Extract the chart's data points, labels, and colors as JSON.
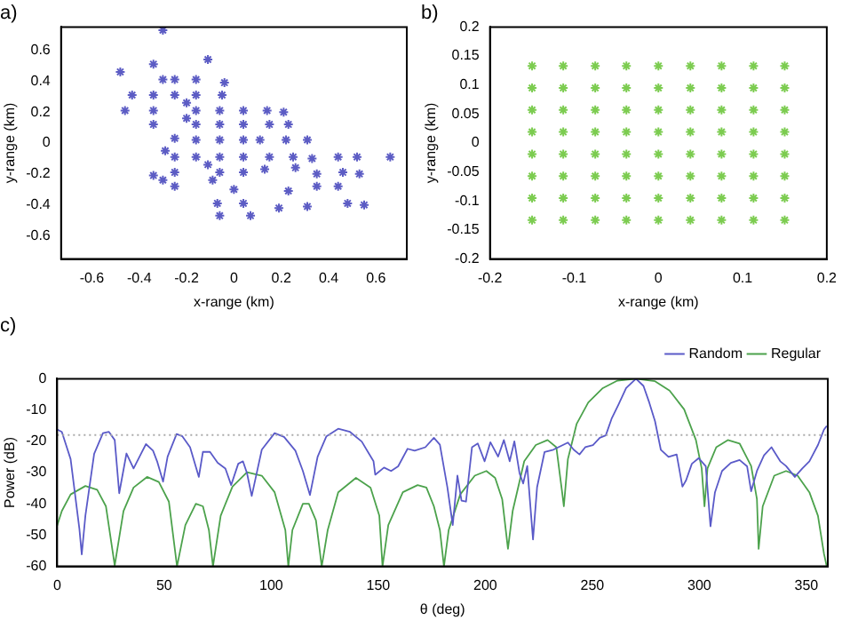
{
  "chart_data": [
    {
      "type": "scatter",
      "title": "a)",
      "xlabel": "x-range (km)",
      "ylabel": "y-range (km)",
      "marker": "cross",
      "color": "#5c5cc4",
      "xlim": [
        -0.73,
        0.73
      ],
      "ylim": [
        -0.75,
        0.75
      ],
      "xticks": [
        -0.6,
        -0.4,
        -0.2,
        0,
        0.2,
        0.4,
        0.6
      ],
      "yticks": [
        -0.6,
        -0.4,
        -0.2,
        0,
        0.2,
        0.4,
        0.6
      ],
      "x": [
        -0.3,
        -0.11,
        -0.48,
        -0.34,
        -0.3,
        -0.25,
        -0.16,
        -0.04,
        -0.43,
        -0.34,
        -0.25,
        -0.16,
        -0.05,
        -0.2,
        -0.46,
        -0.34,
        -0.16,
        -0.06,
        0.04,
        0.14,
        0.21,
        -0.2,
        -0.34,
        -0.16,
        -0.06,
        0.04,
        0.15,
        0.23,
        -0.25,
        -0.16,
        -0.06,
        0.04,
        0.11,
        0.22,
        0.31,
        -0.29,
        -0.25,
        -0.16,
        -0.06,
        0.04,
        0.15,
        0.25,
        0.33,
        0.44,
        0.52,
        0.66,
        -0.11,
        0.26,
        -0.25,
        -0.06,
        0.04,
        0.13,
        0.35,
        0.46,
        0.53,
        -0.34,
        -0.3,
        -0.09,
        -0.25,
        0,
        0.35,
        0.44,
        0.23,
        -0.07,
        0.04,
        0.48,
        0.55,
        0.31,
        0.19,
        -0.06,
        0.07
      ],
      "values": [
        0.73,
        0.54,
        0.46,
        0.51,
        0.41,
        0.41,
        0.41,
        0.39,
        0.31,
        0.31,
        0.31,
        0.31,
        0.31,
        0.26,
        0.21,
        0.21,
        0.21,
        0.21,
        0.21,
        0.21,
        0.2,
        0.16,
        0.12,
        0.12,
        0.12,
        0.12,
        0.12,
        0.12,
        0.03,
        0.02,
        0.02,
        0.02,
        0.02,
        0.02,
        0.02,
        -0.05,
        -0.09,
        -0.09,
        -0.09,
        -0.09,
        -0.09,
        -0.09,
        -0.1,
        -0.09,
        -0.09,
        -0.09,
        -0.14,
        -0.16,
        -0.19,
        -0.19,
        -0.19,
        -0.17,
        -0.2,
        -0.19,
        -0.2,
        -0.21,
        -0.24,
        -0.24,
        -0.28,
        -0.3,
        -0.28,
        -0.28,
        -0.31,
        -0.39,
        -0.39,
        -0.39,
        -0.4,
        -0.41,
        -0.42,
        -0.47,
        -0.47
      ]
    },
    {
      "type": "scatter",
      "title": "b)",
      "xlabel": "x-range (km)",
      "ylabel": "y-range (km)",
      "marker": "cross",
      "color": "#7ccc50",
      "xlim": [
        -0.2,
        0.2
      ],
      "ylim": [
        -0.2,
        0.2
      ],
      "xticks": [
        -0.2,
        -0.1,
        0,
        0.1,
        0.2
      ],
      "yticks": [
        -0.2,
        -0.15,
        -0.1,
        -0.05,
        0,
        0.05,
        0.1,
        0.15,
        0.2
      ],
      "x": [
        -0.15,
        -0.113,
        -0.075,
        -0.038,
        0,
        0.038,
        0.075,
        0.113,
        0.15,
        -0.15,
        -0.113,
        -0.075,
        -0.038,
        0,
        0.038,
        0.075,
        0.113,
        0.15,
        -0.15,
        -0.113,
        -0.075,
        -0.038,
        0,
        0.038,
        0.075,
        0.113,
        0.15,
        -0.15,
        -0.113,
        -0.075,
        -0.038,
        0,
        0.038,
        0.075,
        0.113,
        0.15,
        -0.15,
        -0.113,
        -0.075,
        -0.038,
        0,
        0.038,
        0.075,
        0.113,
        0.15,
        -0.15,
        -0.113,
        -0.075,
        -0.038,
        0,
        0.038,
        0.075,
        0.113,
        0.15,
        -0.15,
        -0.113,
        -0.075,
        -0.038,
        0,
        0.038,
        0.075,
        0.113,
        0.15,
        -0.15,
        -0.113,
        -0.075,
        -0.038,
        0,
        0.038,
        0.075,
        0.113,
        0.15
      ],
      "values": [
        0.133,
        0.133,
        0.133,
        0.133,
        0.133,
        0.133,
        0.133,
        0.133,
        0.133,
        0.095,
        0.095,
        0.095,
        0.095,
        0.095,
        0.095,
        0.095,
        0.095,
        0.095,
        0.057,
        0.057,
        0.057,
        0.057,
        0.057,
        0.057,
        0.057,
        0.057,
        0.057,
        0.019,
        0.019,
        0.019,
        0.019,
        0.019,
        0.019,
        0.019,
        0.019,
        0.019,
        -0.019,
        -0.019,
        -0.019,
        -0.019,
        -0.019,
        -0.019,
        -0.019,
        -0.019,
        -0.019,
        -0.057,
        -0.057,
        -0.057,
        -0.057,
        -0.057,
        -0.057,
        -0.057,
        -0.057,
        -0.057,
        -0.095,
        -0.095,
        -0.095,
        -0.095,
        -0.095,
        -0.095,
        -0.095,
        -0.095,
        -0.095,
        -0.133,
        -0.133,
        -0.133,
        -0.133,
        -0.133,
        -0.133,
        -0.133,
        -0.133,
        -0.133
      ]
    },
    {
      "type": "line",
      "title": "c)",
      "xlabel": "θ (deg)",
      "ylabel": "Power (dB)",
      "legend": "top right",
      "xlim": [
        0,
        360
      ],
      "ylim": [
        -60,
        0
      ],
      "xticks": [
        0,
        50,
        100,
        150,
        200,
        250,
        300,
        350
      ],
      "yticks": [
        -60,
        -50,
        -40,
        -30,
        -20,
        -10,
        0
      ],
      "ref_lines": [
        {
          "axis": "y",
          "value": -18,
          "color": "#aaaaaa",
          "line_style": "dotted"
        }
      ],
      "series": [
        {
          "name": "Random",
          "color": "#5a5ac8",
          "x": [
            0,
            2.2,
            6.3,
            10.4,
            11.5,
            13.2,
            17.3,
            21.4,
            24.2,
            26.9,
            29,
            32.4,
            35.7,
            38.5,
            41.5,
            44.8,
            46.7,
            49.5,
            51.6,
            55.8,
            58.5,
            62.1,
            66.2,
            68.1,
            71.4,
            75,
            78.6,
            81.3,
            84.6,
            86.8,
            88.7,
            90.9,
            95.6,
            101.6,
            106,
            111.3,
            114.8,
            118.1,
            121.7,
            125.8,
            131.3,
            136.8,
            142.3,
            147.8,
            148.6,
            152.7,
            156,
            159.3,
            163.7,
            167,
            172,
            176,
            178.8,
            182.3,
            184.8,
            187,
            188.9,
            191,
            193.8,
            196.5,
            199.7,
            202.4,
            206,
            208.7,
            211.4,
            213.6,
            216,
            217.7,
            219.6,
            222.3,
            224.2,
            227.7,
            231.8,
            235,
            238.6,
            241.3,
            244,
            246.7,
            250.3,
            253.5,
            256.3,
            259,
            262.2,
            265.8,
            270.4,
            273.9,
            276.6,
            279.3,
            282,
            285.6,
            289.4,
            292.1,
            293.8,
            296.5,
            299.7,
            303,
            305.2,
            307.3,
            310.6,
            314.7,
            318.8,
            322.3,
            324.2,
            326.9,
            330.2,
            333.7,
            337.8,
            340.5,
            344.6,
            348.1,
            351.4,
            355.4,
            358.2,
            359.5
          ],
          "values": [
            -16.2,
            -17,
            -25.7,
            -48,
            -56.2,
            -43.8,
            -24,
            -17.4,
            -17,
            -19.6,
            -36.6,
            -23.9,
            -28.7,
            -24.9,
            -20.9,
            -23,
            -26.4,
            -32.9,
            -24.9,
            -17.7,
            -18.4,
            -21.9,
            -31.4,
            -23.4,
            -23.4,
            -26.9,
            -28.7,
            -34,
            -27.2,
            -26.4,
            -30.2,
            -37.5,
            -22.7,
            -17.4,
            -18.6,
            -23,
            -29.5,
            -37.2,
            -24.9,
            -18.4,
            -16,
            -17,
            -20.1,
            -26.4,
            -30.7,
            -28.4,
            -29.5,
            -28,
            -22.4,
            -23,
            -21.9,
            -18.9,
            -21.1,
            -34.7,
            -46.8,
            -31,
            -39,
            -39.3,
            -21.9,
            -20.7,
            -26.4,
            -20.3,
            -24.9,
            -19.6,
            -26.4,
            -20,
            -30.2,
            -33.5,
            -27.9,
            -51.4,
            -34.7,
            -23.4,
            -22.7,
            -21.6,
            -20.4,
            -22.7,
            -24.2,
            -21.9,
            -21.2,
            -18.9,
            -18.1,
            -12.8,
            -8.3,
            -3,
            0,
            -2.3,
            -7.6,
            -13.6,
            -22.7,
            -25,
            -24.2,
            -34.5,
            -32.5,
            -27.2,
            -25.4,
            -28,
            -47.2,
            -36.3,
            -29.5,
            -26.9,
            -26,
            -28,
            -36,
            -29.5,
            -24.5,
            -21.9,
            -26.4,
            -27.9,
            -31.4,
            -28.7,
            -26.4,
            -21.2,
            -16.3,
            -15.1
          ]
        },
        {
          "name": "Regular",
          "color": "#4ca24c",
          "x": [
            0,
            2.2,
            6.3,
            13.2,
            18.7,
            22.8,
            26.9,
            31,
            35.7,
            42,
            47.5,
            52.2,
            56,
            59.9,
            64.8,
            68.1,
            70.9,
            72.8,
            76.4,
            81.9,
            88.7,
            95.6,
            101.6,
            106.6,
            108,
            109.9,
            114.8,
            117.6,
            120.9,
            123.6,
            126.4,
            131.3,
            139.6,
            146.4,
            150.5,
            152,
            154.7,
            161.5,
            168.4,
            172.5,
            176,
            178.8,
            180.7,
            182.9,
            188.3,
            195.1,
            200.5,
            204.6,
            207.9,
            210.6,
            212.8,
            218.2,
            223.6,
            229.1,
            233.2,
            235.9,
            236.7,
            238.6,
            242.7,
            248.1,
            254.9,
            261.7,
            270.4,
            279.3,
            286.1,
            292.9,
            298.4,
            301.1,
            302.4,
            303.8,
            307.9,
            313.3,
            318.8,
            324.2,
            326.9,
            327.7,
            329.6,
            335,
            340.5,
            345.9,
            351.4,
            355.4,
            358.2,
            359.5
          ],
          "values": [
            -47,
            -42.3,
            -37,
            -34.3,
            -35.5,
            -40.8,
            -59.7,
            -42.3,
            -34.8,
            -31.4,
            -33,
            -39.3,
            -60,
            -46.8,
            -40,
            -40.8,
            -48.4,
            -60,
            -43.8,
            -34.5,
            -29.9,
            -31,
            -36.3,
            -48.4,
            -60,
            -48.4,
            -40,
            -40,
            -45.3,
            -60,
            -48.4,
            -36.3,
            -31.7,
            -34.8,
            -43.8,
            -60,
            -46.8,
            -36.3,
            -34,
            -34.8,
            -40.8,
            -48.4,
            -60,
            -48.4,
            -37,
            -31,
            -29.5,
            -31.7,
            -38.5,
            -54.4,
            -42.3,
            -26.4,
            -21.2,
            -19.6,
            -21.9,
            -36.3,
            -40.8,
            -25.7,
            -14.4,
            -7.6,
            -3,
            -0.6,
            0,
            -0.8,
            -3.8,
            -9.8,
            -19.6,
            -28.7,
            -40.8,
            -28.7,
            -21.9,
            -19.6,
            -20.7,
            -27.9,
            -38.5,
            -54.4,
            -40.8,
            -31,
            -29.5,
            -31,
            -36.3,
            -43.8,
            -55.9,
            -60
          ]
        }
      ]
    }
  ]
}
